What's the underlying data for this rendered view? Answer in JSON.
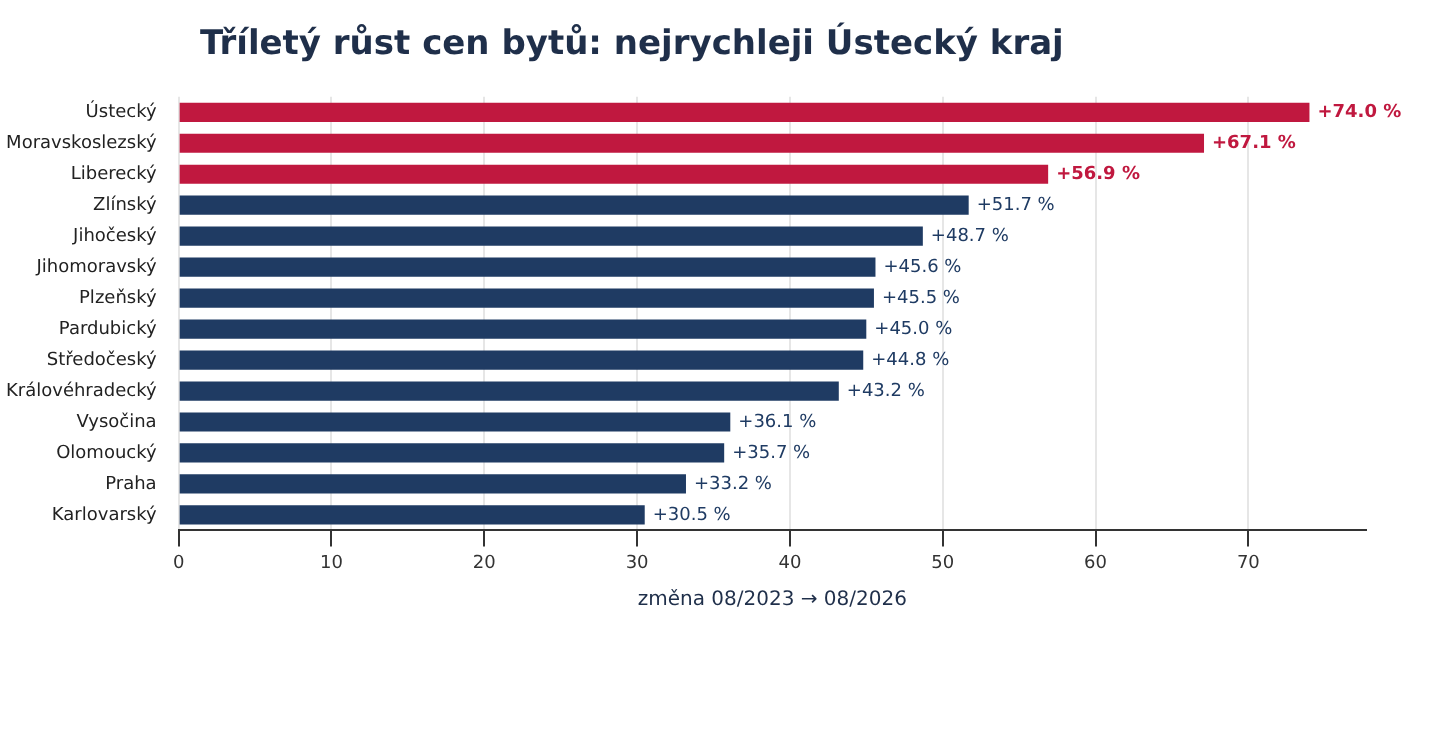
{
  "chart_data": {
    "type": "bar",
    "orientation": "horizontal",
    "title": "Tříletý růst cen bytů: nejrychleji Ústecký kraj",
    "xlabel": "změna 08/2023 → 08/2026",
    "categories": [
      "Ústecký",
      "Moravskoslezský",
      "Liberecký",
      "Zlínský",
      "Jihočeský",
      "Jihomoravský",
      "Plzeňský",
      "Pardubický",
      "Středočeský",
      "Královéhradecký",
      "Vysočina",
      "Olomoucký",
      "Praha",
      "Karlovarský"
    ],
    "values": [
      74.0,
      67.1,
      56.9,
      51.7,
      48.7,
      45.6,
      45.5,
      45.0,
      44.8,
      43.2,
      36.1,
      35.7,
      33.2,
      30.5
    ],
    "colors": [
      "#c0183f",
      "#c0183f",
      "#c0183f",
      "#1f3b63",
      "#1f3b63",
      "#1f3b63",
      "#1f3b63",
      "#1f3b63",
      "#1f3b63",
      "#1f3b63",
      "#1f3b63",
      "#1f3b63",
      "#1f3b63",
      "#1f3b63"
    ],
    "value_labels": [
      "+74.0 %",
      "+67.1 %",
      "+56.9 %",
      "+51.7 %",
      "+48.7 %",
      "+45.6 %",
      "+45.5 %",
      "+45.0 %",
      "+44.8 %",
      "+43.2 %",
      "+36.1 %",
      "+35.7 %",
      "+33.2 %",
      "+30.5 %"
    ],
    "xlim": [
      0,
      77.7
    ],
    "xticks": [
      0,
      10,
      20,
      30,
      40,
      50,
      60,
      70
    ],
    "grid": "x"
  }
}
